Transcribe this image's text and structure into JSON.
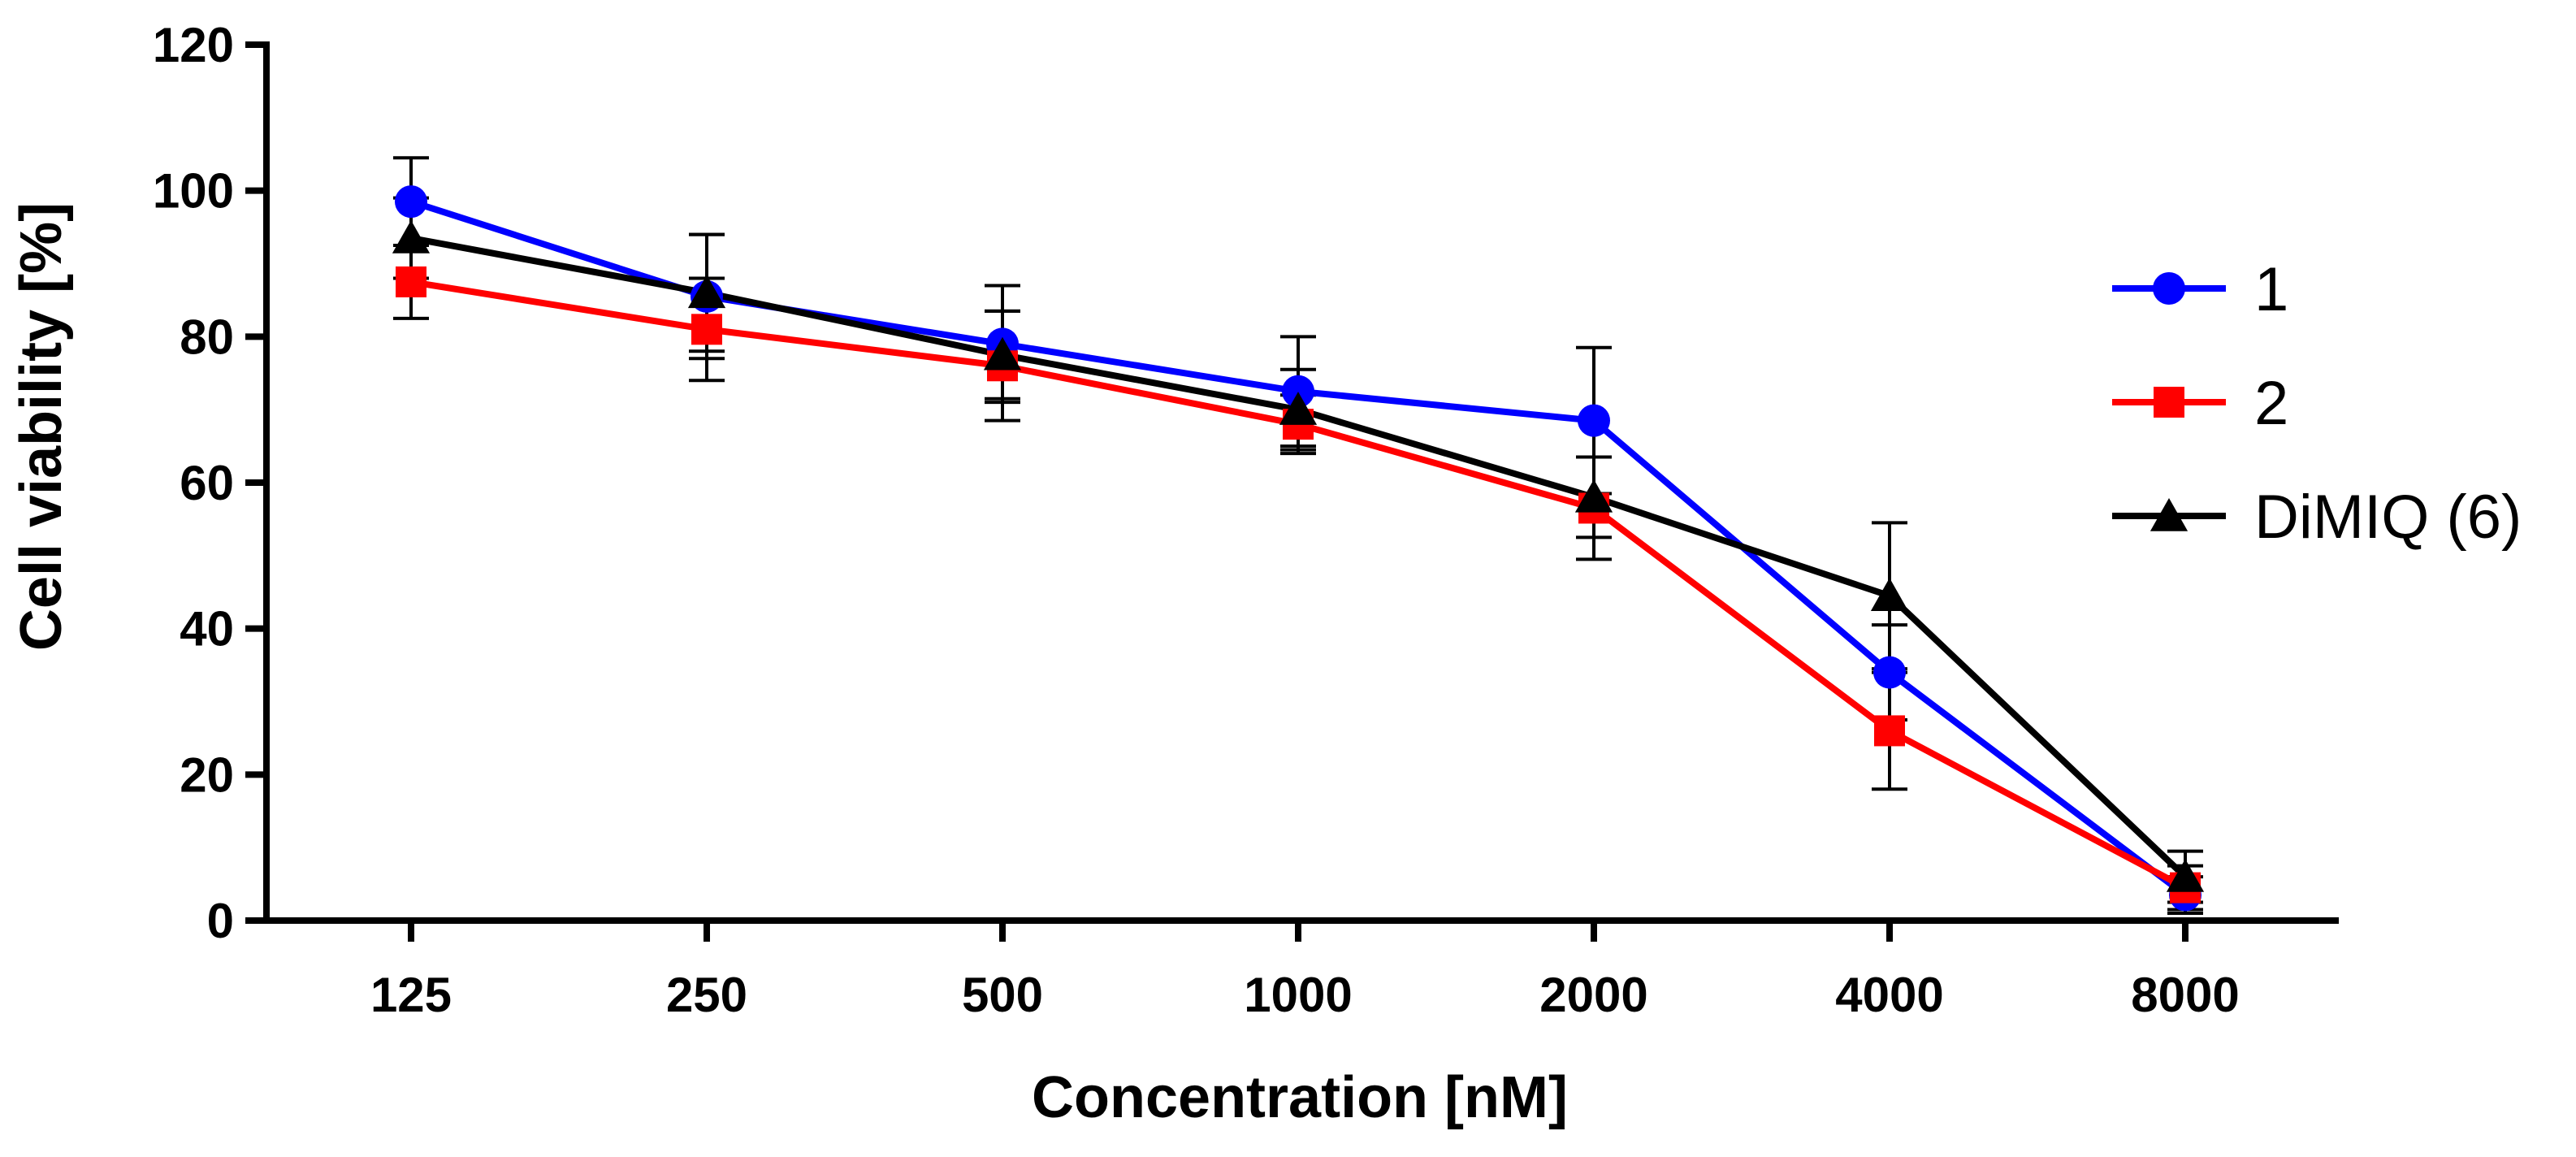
{
  "chart_data": {
    "type": "line",
    "title": "",
    "xlabel": "Concentration [nM]",
    "ylabel": "Cell viability [%]",
    "categories": [
      "125",
      "250",
      "500",
      "1000",
      "2000",
      "4000",
      "8000"
    ],
    "ylim": [
      0,
      120
    ],
    "yticks": [
      0,
      20,
      40,
      60,
      80,
      100,
      120
    ],
    "grid": false,
    "legend_position": "right",
    "series": [
      {
        "name": "1",
        "color": "#0000ff",
        "marker": "circle",
        "values": [
          98.5,
          85.5,
          79,
          72.5,
          68.5,
          34,
          3.5
        ],
        "errors": [
          6.0,
          8.5,
          8.0,
          7.5,
          10.0,
          6.5,
          2.5
        ]
      },
      {
        "name": "2",
        "color": "#ff0000",
        "marker": "square",
        "values": [
          87.5,
          81,
          76,
          68,
          56.5,
          26,
          4.5
        ],
        "errors": [
          5.0,
          7.0,
          7.5,
          4.0,
          7.0,
          8.0,
          3.0
        ]
      },
      {
        "name": "DiMIQ (6)",
        "color": "#000000",
        "marker": "triangle",
        "values": [
          93.5,
          86,
          77.5,
          70,
          58,
          44.5,
          6
        ],
        "errors": [
          5.5,
          8.0,
          6.0,
          5.5,
          5.5,
          10.0,
          3.5
        ]
      }
    ]
  }
}
